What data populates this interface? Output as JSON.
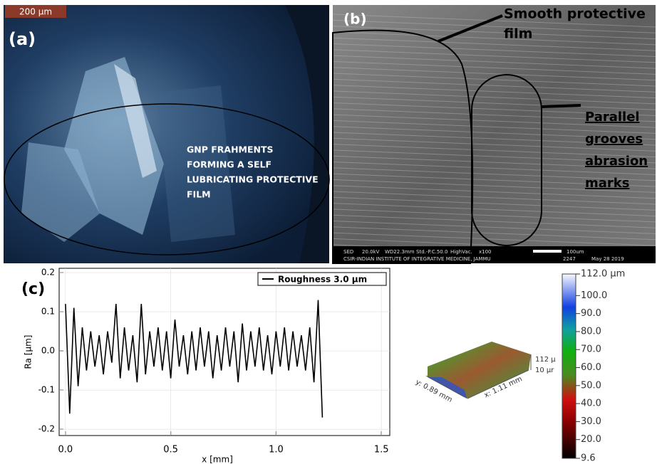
{
  "panel_a": {
    "label": "(a)",
    "scale_bar": "200 µm",
    "annotation": [
      "GNP FRAHMENTS",
      "FORMING A SELF",
      "LUBRICATING PROTECTIVE",
      "FILM"
    ]
  },
  "panel_b": {
    "label": "(b)",
    "annotation_film": [
      "Smooth protective",
      "film"
    ],
    "annotation_grooves": [
      "Parallel",
      "grooves",
      "abrasion",
      "marks"
    ],
    "info_bar": [
      "SED",
      "20.0kV",
      "WD22.3mm",
      "Std.-P.C.50.0",
      "HighVac.",
      "x100",
      "100um"
    ],
    "info_bar_2": [
      "CSIR-INDIAN INSTITUTE OF INTEGRATIVE MEDICINE, JAMMU",
      "2247",
      "May 28 2019"
    ]
  },
  "chart_data": {
    "type": "line",
    "panel_label": "(c)",
    "xlabel": "x [mm]",
    "ylabel": "Ra [µm]",
    "x": [
      0,
      0.02,
      0.04,
      0.06,
      0.08,
      0.1,
      0.12,
      0.14,
      0.16,
      0.18,
      0.2,
      0.22,
      0.24,
      0.26,
      0.28,
      0.3,
      0.32,
      0.34,
      0.36,
      0.38,
      0.4,
      0.42,
      0.44,
      0.46,
      0.48,
      0.5,
      0.52,
      0.54,
      0.56,
      0.58,
      0.6,
      0.62,
      0.64,
      0.66,
      0.68,
      0.7,
      0.72,
      0.74,
      0.76,
      0.78,
      0.8,
      0.82,
      0.84,
      0.86,
      0.88,
      0.9,
      0.92,
      0.94,
      0.96,
      0.98,
      1.0,
      1.02,
      1.04,
      1.06,
      1.08,
      1.1,
      1.12,
      1.14,
      1.16,
      1.18,
      1.2,
      1.22
    ],
    "series": [
      {
        "name": "Roughness 3.0 µm",
        "color": "#000000",
        "values": [
          0.12,
          -0.16,
          0.11,
          -0.09,
          0.06,
          -0.05,
          0.05,
          -0.04,
          0.04,
          -0.06,
          0.05,
          -0.03,
          0.12,
          -0.07,
          0.06,
          -0.05,
          0.04,
          -0.08,
          0.12,
          -0.06,
          0.05,
          -0.04,
          0.06,
          -0.05,
          0.05,
          -0.07,
          0.08,
          -0.04,
          0.04,
          -0.06,
          0.05,
          -0.05,
          0.06,
          -0.04,
          0.05,
          -0.07,
          0.04,
          -0.05,
          0.06,
          -0.04,
          0.05,
          -0.08,
          0.07,
          -0.05,
          0.05,
          -0.04,
          0.06,
          -0.05,
          0.04,
          -0.06,
          0.05,
          -0.04,
          0.06,
          -0.05,
          0.05,
          -0.04,
          0.04,
          -0.05,
          0.06,
          -0.08,
          0.13,
          -0.17
        ]
      }
    ],
    "xlim": [
      -0.03,
      1.54
    ],
    "ylim": [
      -0.216,
      0.211
    ],
    "xticks": [
      {
        "value": 0,
        "label": "0.0"
      },
      0.5,
      {
        "value": 1,
        "label": "1.0"
      },
      1.5
    ],
    "yticks": [
      -0.2,
      -0.1,
      {
        "value": 0,
        "label": "0.0"
      },
      0.1,
      0.2
    ],
    "legend": "upper right"
  },
  "surface_3d": {
    "y_axis": "y: 0.89 mm",
    "x_axis": "x: 1.11 mm",
    "z_top": "112 µ",
    "z_bottom": "10 µr",
    "colorbar_ticks": [
      {
        "value": 112.0,
        "label": "112.0 µm"
      },
      {
        "value": 100.0,
        "label": "100.0"
      },
      {
        "value": 90.0,
        "label": "90.0"
      },
      {
        "value": 80.0,
        "label": "80.0"
      },
      {
        "value": 70.0,
        "label": "70.0"
      },
      {
        "value": 60.0,
        "label": "60.0"
      },
      {
        "value": 50.0,
        "label": "50.0"
      },
      {
        "value": 40.0,
        "label": "40.0"
      },
      {
        "value": 30.0,
        "label": "30.0"
      },
      {
        "value": 20.0,
        "label": "20.0"
      },
      {
        "value": 9.6,
        "label": "9.6"
      }
    ]
  }
}
